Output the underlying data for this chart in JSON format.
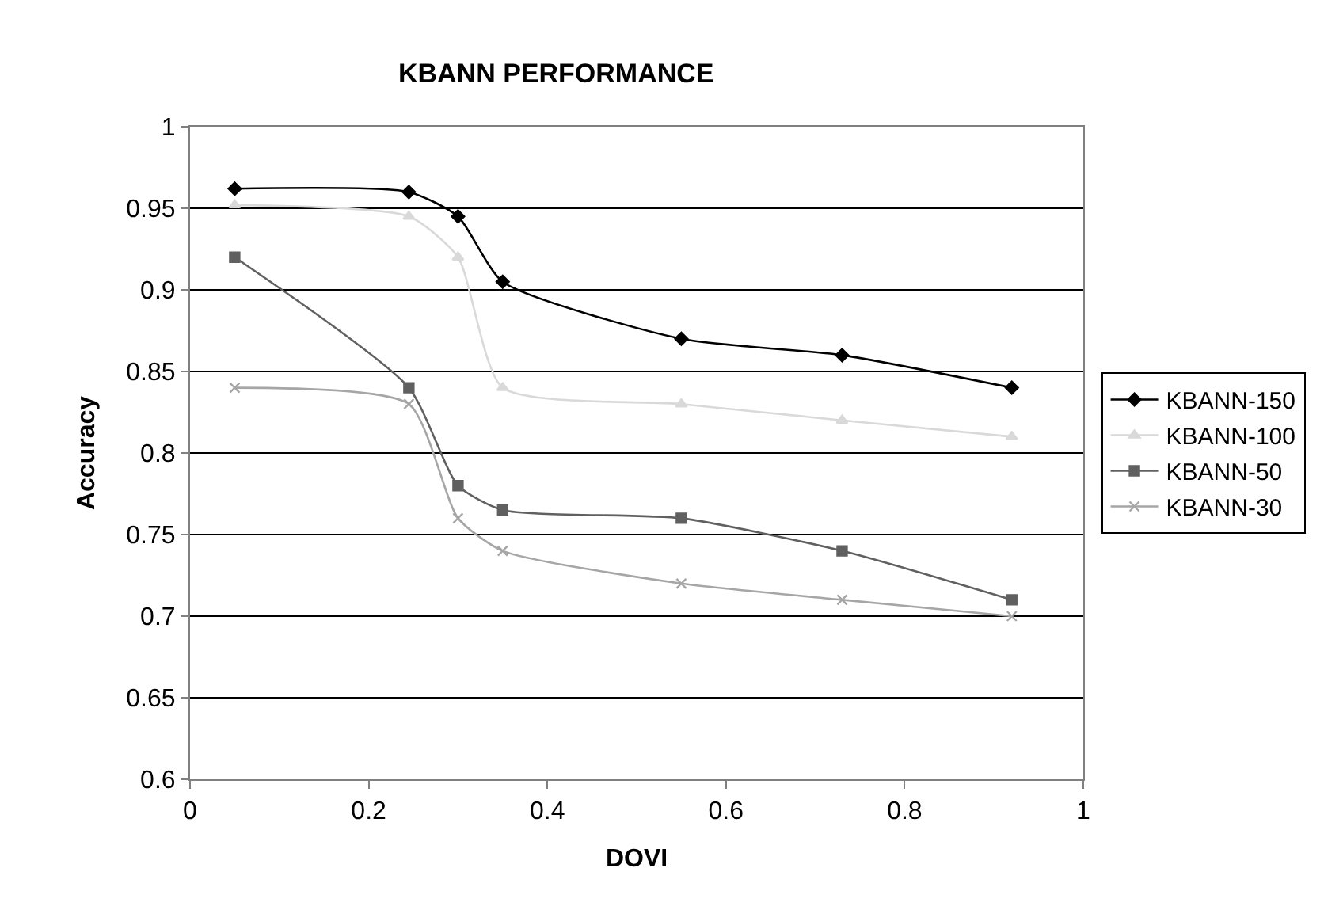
{
  "chart_data": {
    "type": "line",
    "title": "KBANN PERFORMANCE",
    "xlabel": "DOVI",
    "ylabel": "Accuracy",
    "x": [
      0.05,
      0.245,
      0.3,
      0.35,
      0.55,
      0.73,
      0.92
    ],
    "series": [
      {
        "name": "KBANN-150",
        "color": "#000000",
        "marker": "diamond",
        "values": [
          0.962,
          0.96,
          0.945,
          0.905,
          0.87,
          0.86,
          0.84
        ]
      },
      {
        "name": "KBANN-100",
        "color": "#d9d9d9",
        "marker": "triangle",
        "values": [
          0.952,
          0.945,
          0.92,
          0.84,
          0.83,
          0.82,
          0.81
        ]
      },
      {
        "name": "KBANN-50",
        "color": "#606060",
        "marker": "square",
        "values": [
          0.92,
          0.84,
          0.78,
          0.765,
          0.76,
          0.74,
          0.71
        ]
      },
      {
        "name": "KBANN-30",
        "color": "#a6a6a6",
        "marker": "cross",
        "values": [
          0.84,
          0.83,
          0.76,
          0.74,
          0.72,
          0.71,
          0.7
        ]
      }
    ],
    "xlim": [
      0,
      1
    ],
    "xticks": [
      0,
      0.2,
      0.4,
      0.6,
      0.8,
      1
    ],
    "ylim": [
      0.6,
      1
    ],
    "yticks": [
      0.6,
      0.65,
      0.7,
      0.75,
      0.8,
      0.85,
      0.9,
      0.95,
      1
    ],
    "grid": "y",
    "legend": "right",
    "line_style": "solid"
  }
}
